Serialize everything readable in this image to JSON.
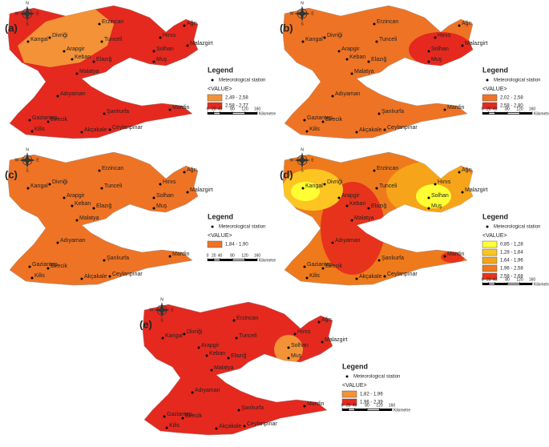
{
  "compass": [
    "N",
    "E",
    "S",
    "W"
  ],
  "stations": [
    "Erzincan",
    "Ağrı",
    "Kangal",
    "Divriği",
    "Hınıs",
    "Malazgirt",
    "Arapgir",
    "Tunceli",
    "Keban",
    "Elazığ",
    "Solhan",
    "Muş",
    "Malatya",
    "Adıyaman",
    "Mardin",
    "Şanlıurfa",
    "Gaziantep",
    "Birecik",
    "Kilis",
    "Akçakale",
    "Ceylanpınar"
  ],
  "legend": {
    "title": "Legend",
    "station": "Meteorological station",
    "value": "<VALUE>"
  },
  "scale_bar": {
    "ticks": [
      0,
      20,
      40,
      80,
      120,
      160
    ],
    "unit": "Kilometre"
  },
  "panels": [
    {
      "label": "(a)",
      "classes": [
        {
          "label": "2,49 - 2,58",
          "color": "#f39237"
        },
        {
          "label": "2,58 - 2,77",
          "color": "#e5291f"
        }
      ]
    },
    {
      "label": "(b)",
      "classes": [
        {
          "label": "2,02 - 2,58",
          "color": "#ef7324"
        },
        {
          "label": "2,58 - 2,80",
          "color": "#e5291f"
        }
      ]
    },
    {
      "label": "(c)",
      "classes": [
        {
          "label": "1,84 - 1,90",
          "color": "#ef7324"
        }
      ]
    },
    {
      "label": "(d)",
      "classes": [
        {
          "label": "0,85 - 1,28",
          "color": "#ffff33"
        },
        {
          "label": "1,28 - 1,64",
          "color": "#fcc521"
        },
        {
          "label": "1,64 - 1,96",
          "color": "#f6a41a"
        },
        {
          "label": "1,96 - 2,58",
          "color": "#ef7a1c"
        },
        {
          "label": "2,58 - 2,68",
          "color": "#e7331c"
        }
      ]
    },
    {
      "label": "(e)",
      "classes": [
        {
          "label": "1,82 - 1,96",
          "color": "#f39237"
        },
        {
          "label": "1,96 - 2,39",
          "color": "#e5291f"
        }
      ]
    }
  ]
}
